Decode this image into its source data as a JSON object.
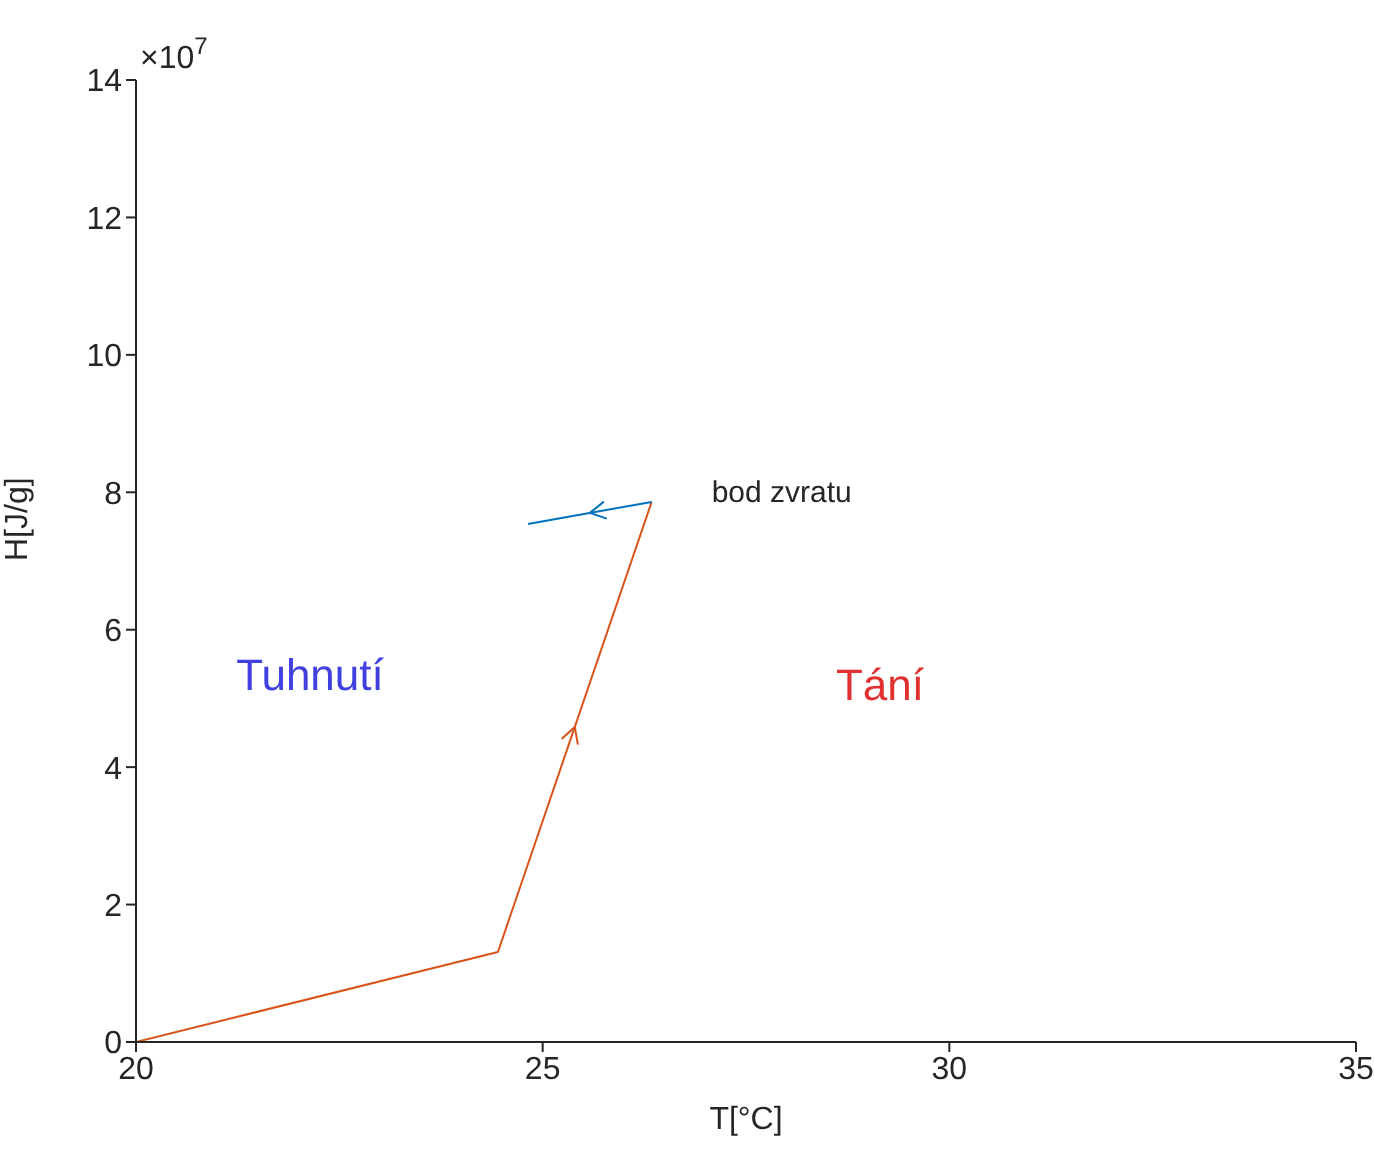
{
  "chart_data": {
    "type": "line",
    "xlabel": "T[°C]",
    "ylabel": "H[J/g]",
    "xlim": [
      20,
      35
    ],
    "xticks": [
      20,
      25,
      30,
      35
    ],
    "ylim": [
      0,
      14
    ],
    "yticks": [
      0,
      2,
      4,
      6,
      8,
      10,
      12,
      14
    ],
    "marker": "none",
    "line_style": "solid",
    "series": [
      {
        "color": "#d95319",
        "x": [
          20,
          24.45,
          26.34
        ],
        "values": [
          0,
          1.31,
          7.86
        ]
      },
      {
        "color": "#0072bd",
        "x": [
          26.34,
          24.82
        ],
        "values": [
          7.86,
          7.54
        ]
      }
    ],
    "annotations": [
      "×10$^{7}$",
      {
        "text": "bod zvratu",
        "x": 26.34,
        "y": 7.86
      },
      "Tuhnutí",
      "Tání"
    ]
  }
}
